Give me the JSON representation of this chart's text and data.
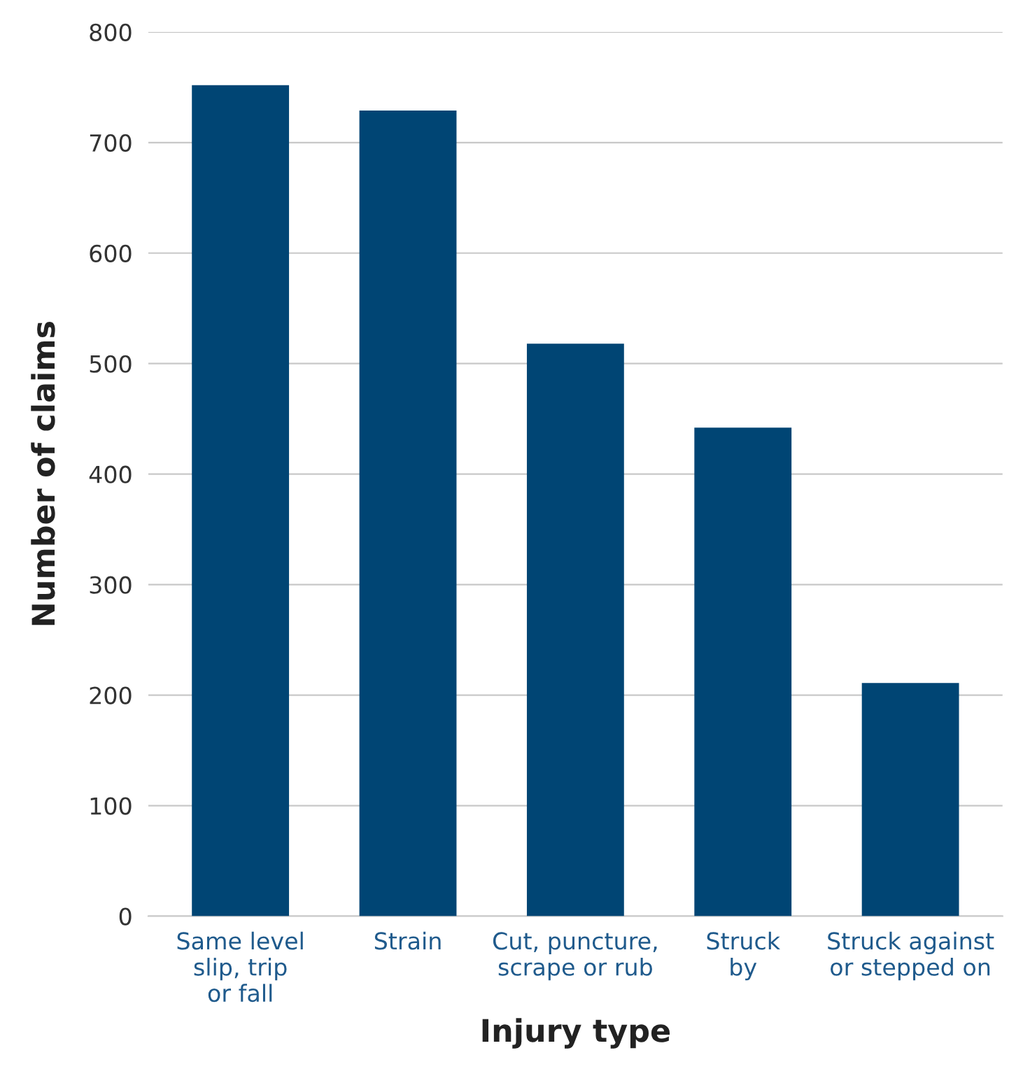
{
  "chart_data": {
    "type": "bar",
    "xlabel": "Injury type",
    "ylabel": "Number of claims",
    "categories": [
      "Same level\nslip, trip\nor fall",
      "Strain",
      "Cut, puncture,\nscrape or rub",
      "Struck\nby",
      "Struck against\nor stepped on"
    ],
    "values": [
      752,
      729,
      518,
      442,
      211
    ],
    "color": "#004574",
    "ylim": [
      0,
      800
    ],
    "yticks": [
      0,
      100,
      200,
      300,
      400,
      500,
      600,
      700,
      800
    ],
    "grid": "y"
  }
}
